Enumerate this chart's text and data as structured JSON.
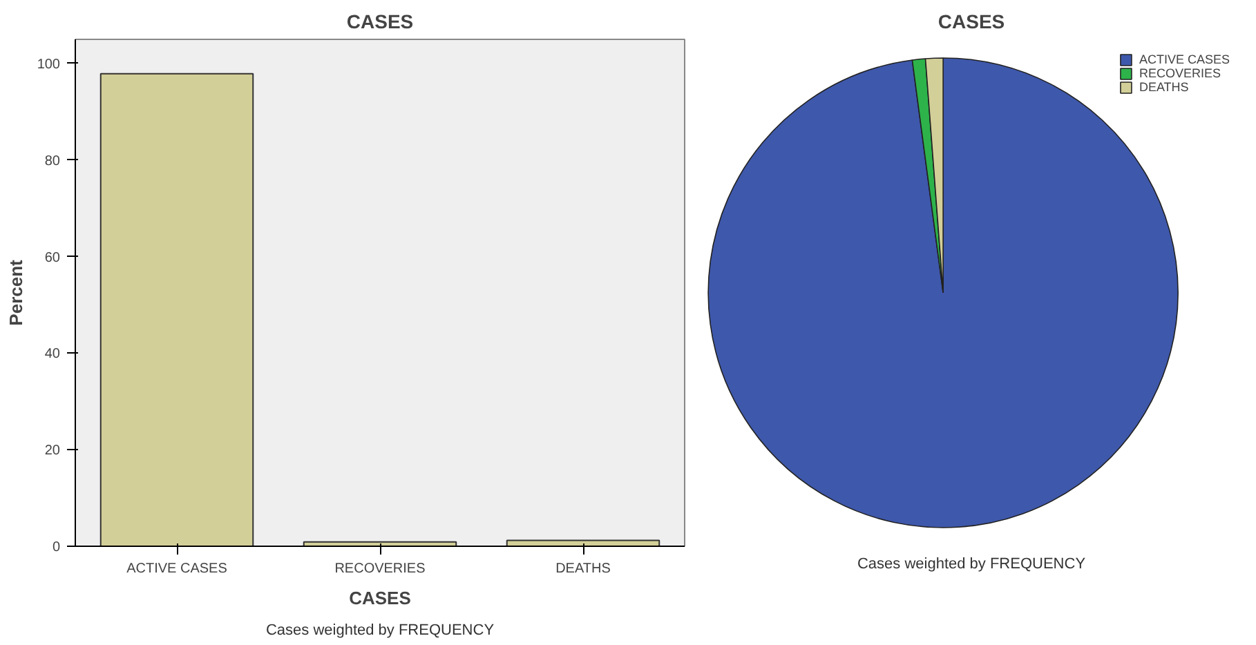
{
  "chart_data": [
    {
      "type": "bar",
      "title": "CASES",
      "xlabel": "CASES",
      "ylabel": "Percent",
      "categories": [
        "ACTIVE CASES",
        "RECOVERIES",
        "DEATHS"
      ],
      "values": [
        97.9,
        0.9,
        1.2
      ],
      "color": "#d3cf98",
      "ylim": [
        0,
        105
      ],
      "yticks": [
        0,
        20,
        40,
        60,
        80,
        100
      ],
      "grid": false,
      "annotations": [
        "Cases weighted by FREQUENCY"
      ]
    },
    {
      "type": "pie",
      "title": "CASES",
      "categories": [
        "ACTIVE CASES",
        "RECOVERIES",
        "DEATHS"
      ],
      "values": [
        97.9,
        0.9,
        1.2
      ],
      "colors": [
        "#3e58ab",
        "#2db34a",
        "#d3cf98"
      ],
      "legend": "top right",
      "annotations": [
        "Cases weighted by FREQUENCY"
      ]
    }
  ]
}
